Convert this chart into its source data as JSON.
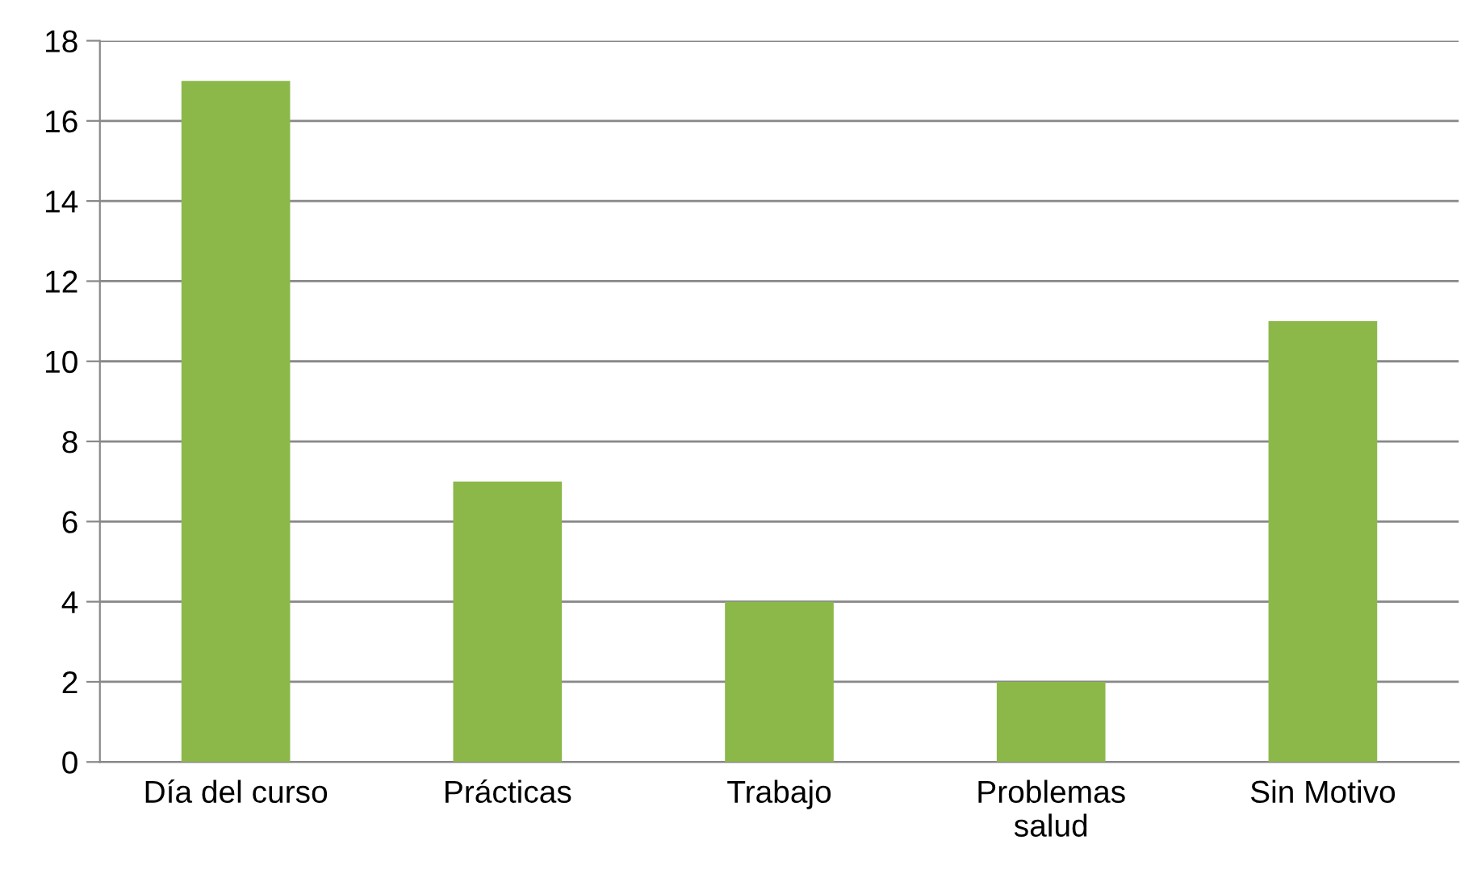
{
  "chart_data": {
    "type": "bar",
    "categories": [
      "Día del curso",
      "Prácticas",
      "Trabajo",
      "Problemas\nsalud",
      "Sin Motivo"
    ],
    "values": [
      17,
      7,
      4,
      2,
      11
    ],
    "color": "#8cb84a",
    "ylim": [
      0,
      18
    ],
    "yticks": [
      0,
      2,
      4,
      6,
      8,
      10,
      12,
      14,
      16,
      18
    ],
    "grid": "y",
    "legend": false
  }
}
